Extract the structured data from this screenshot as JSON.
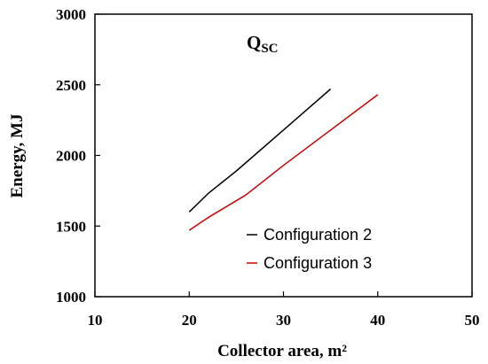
{
  "chart_data": {
    "type": "line",
    "xlabel": "Collector area, m²",
    "ylabel": "Energy, MJ",
    "xlim": [
      10,
      50
    ],
    "ylim": [
      1000,
      3000
    ],
    "xticks": [
      10,
      20,
      30,
      40,
      50
    ],
    "yticks": [
      1000,
      1500,
      2000,
      2500,
      3000
    ],
    "grid": false,
    "legend_position": "lower-right",
    "annotation": {
      "main": "Q",
      "subscript": "SC"
    },
    "series": [
      {
        "name": "Configuration 2",
        "color": "#000000",
        "x": [
          20,
          22,
          25,
          30,
          35
        ],
        "y": [
          1600,
          1730,
          1890,
          2180,
          2470
        ]
      },
      {
        "name": "Configuration 3",
        "color": "#cc0000",
        "x": [
          20,
          22,
          26,
          30,
          35,
          40
        ],
        "y": [
          1470,
          1560,
          1720,
          1930,
          2180,
          2430
        ]
      }
    ]
  }
}
